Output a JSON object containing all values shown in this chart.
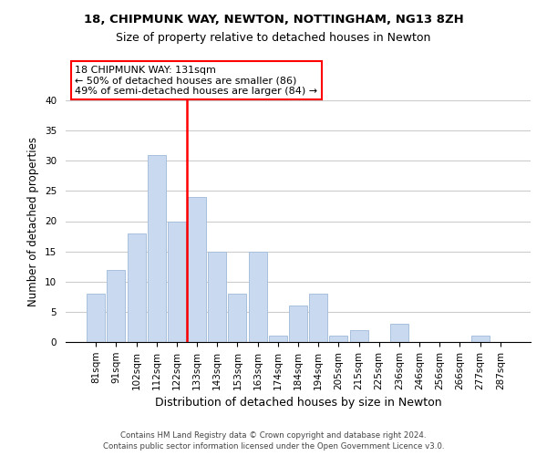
{
  "title1": "18, CHIPMUNK WAY, NEWTON, NOTTINGHAM, NG13 8ZH",
  "title2": "Size of property relative to detached houses in Newton",
  "xlabel": "Distribution of detached houses by size in Newton",
  "ylabel": "Number of detached properties",
  "categories": [
    "81sqm",
    "91sqm",
    "102sqm",
    "112sqm",
    "122sqm",
    "133sqm",
    "143sqm",
    "153sqm",
    "163sqm",
    "174sqm",
    "184sqm",
    "194sqm",
    "205sqm",
    "215sqm",
    "225sqm",
    "236sqm",
    "246sqm",
    "256sqm",
    "266sqm",
    "277sqm",
    "287sqm"
  ],
  "values": [
    8,
    12,
    18,
    31,
    20,
    24,
    15,
    8,
    15,
    1,
    6,
    8,
    1,
    2,
    0,
    3,
    0,
    0,
    0,
    1,
    0
  ],
  "bar_color": "#c9d9f0",
  "bar_edge_color": "#a8c0dc",
  "vline_color": "red",
  "vline_x_index": 5,
  "annotation_line1": "18 CHIPMUNK WAY: 131sqm",
  "annotation_line2": "← 50% of detached houses are smaller (86)",
  "annotation_line3": "49% of semi-detached houses are larger (84) →",
  "annotation_box_color": "white",
  "annotation_box_edge_color": "red",
  "ylim": [
    0,
    40
  ],
  "yticks": [
    0,
    5,
    10,
    15,
    20,
    25,
    30,
    35,
    40
  ],
  "footer1": "Contains HM Land Registry data © Crown copyright and database right 2024.",
  "footer2": "Contains public sector information licensed under the Open Government Licence v3.0.",
  "bg_color": "white",
  "grid_color": "#cccccc",
  "title1_fontsize": 9.5,
  "title2_fontsize": 9,
  "ylabel_fontsize": 8.5,
  "xlabel_fontsize": 9,
  "tick_fontsize": 7.5,
  "annot_fontsize": 8,
  "footer_fontsize": 6.2
}
